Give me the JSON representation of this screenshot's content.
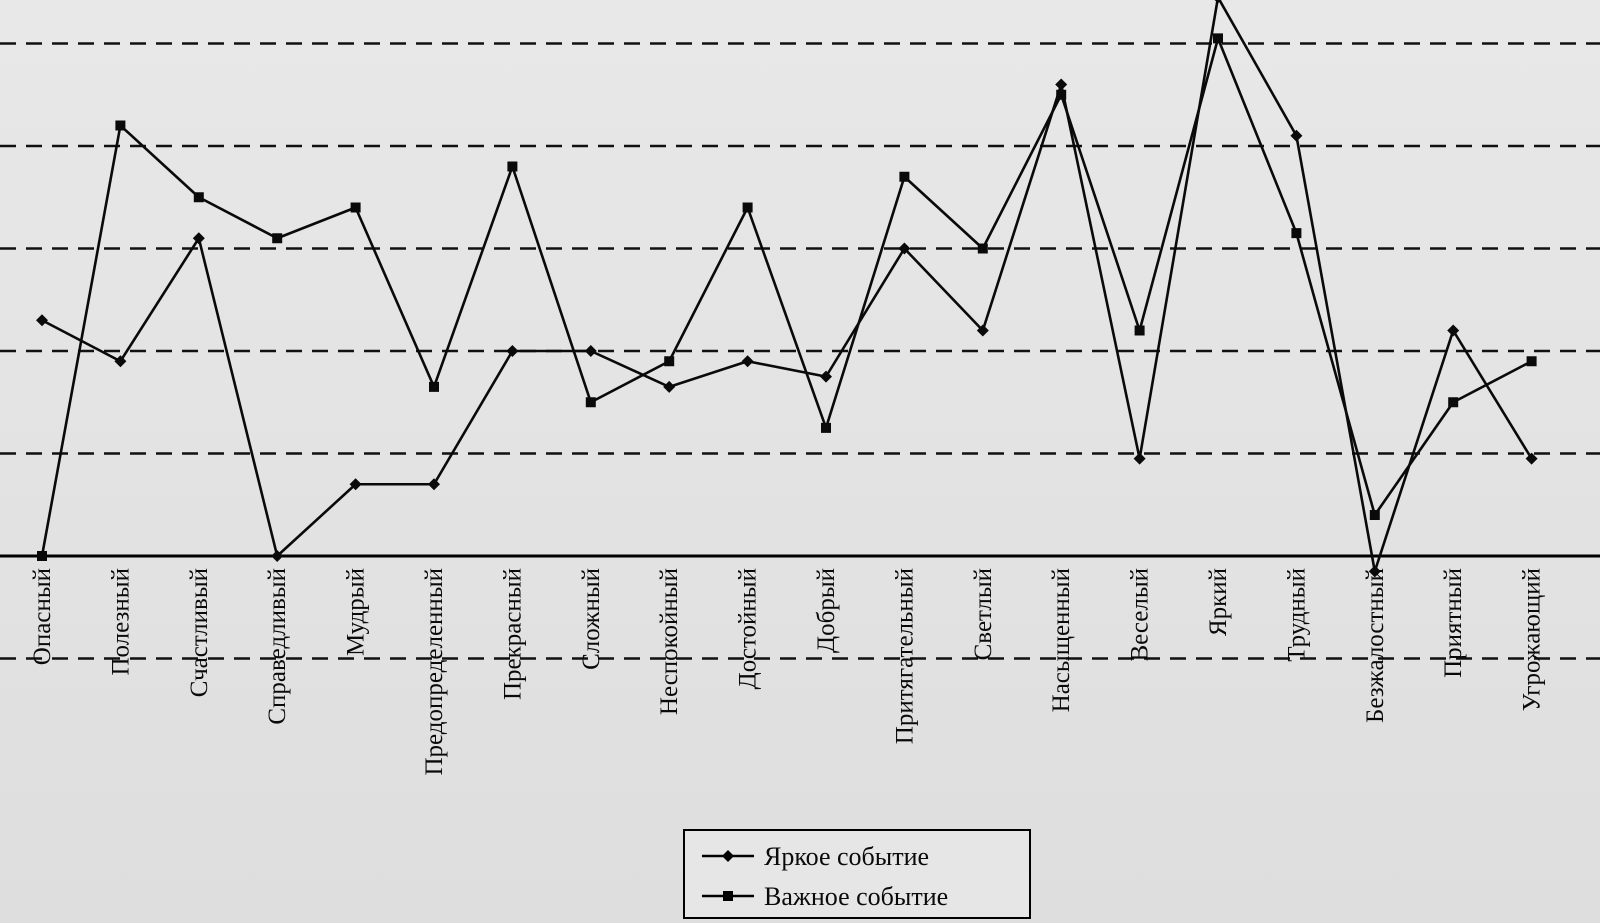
{
  "chart_data": {
    "type": "line",
    "title": "",
    "xlabel": "",
    "ylabel": "",
    "y_axis_ticks_shown": false,
    "grid": "horizontal dashed",
    "ylim": [
      0,
      5.4
    ],
    "categories": [
      "Опасный",
      "Полезный",
      "Счастливый",
      "Справедливый",
      "Мудрый",
      "Предопределенный",
      "Прекрасный",
      "Сложный",
      "Неспокойный",
      "Достойный",
      "Добрый",
      "Притягательный",
      "Светлый",
      "Насыщенный",
      "Веселый",
      "Яркий",
      "Трудный",
      "Безжалостный",
      "Приятный",
      "Угрожающий"
    ],
    "series": [
      {
        "name": "Яркое событие",
        "marker": "diamond",
        "values": [
          2.3,
          1.9,
          3.1,
          0.0,
          0.7,
          0.7,
          2.0,
          2.0,
          1.65,
          1.9,
          1.75,
          3.0,
          2.2,
          4.6,
          0.95,
          5.45,
          4.1,
          -0.15,
          2.2,
          0.95
        ]
      },
      {
        "name": "Важное событие",
        "marker": "square",
        "values": [
          0.0,
          4.2,
          3.5,
          3.1,
          3.4,
          1.65,
          3.8,
          1.5,
          1.9,
          3.4,
          1.25,
          3.7,
          3.0,
          4.5,
          2.2,
          5.05,
          3.15,
          0.4,
          1.5,
          1.9
        ]
      }
    ],
    "legend": {
      "position": "bottom-center",
      "entries": [
        "Яркое событие",
        "Важное событие"
      ]
    }
  },
  "colors": {
    "line": "#0a0a0a",
    "background": "#e4e4e4"
  }
}
